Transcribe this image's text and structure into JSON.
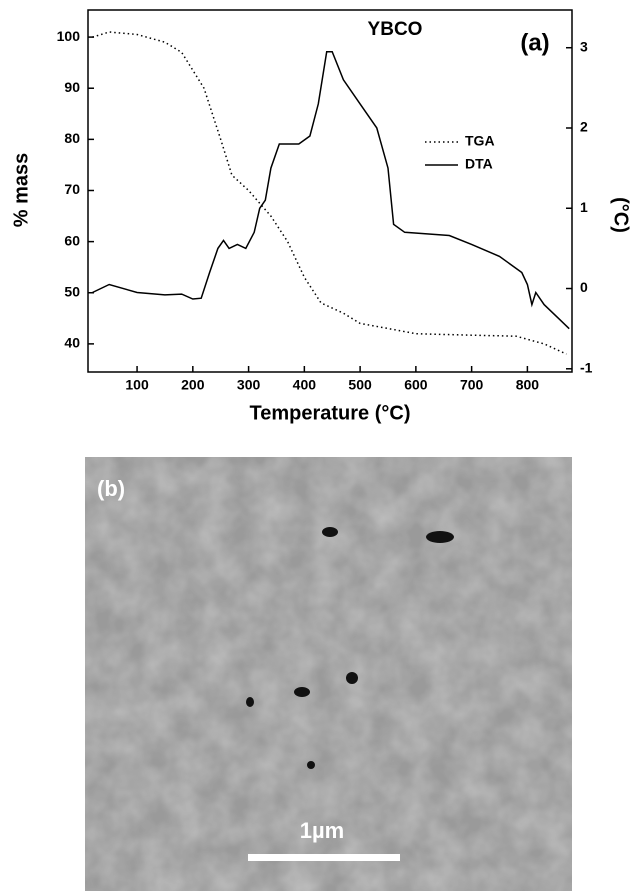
{
  "chart_data": {
    "type": "line",
    "title": "YBCO",
    "annotation": "(a)",
    "x_label": "Temperature (°C)",
    "y_label": "% mass",
    "y2_label": "(°C)",
    "xlim": [
      12,
      880
    ],
    "xticks": [
      100,
      200,
      300,
      400,
      500,
      600,
      700,
      800
    ],
    "ylim": [
      34.5,
      105.3
    ],
    "yticks": [
      40,
      50,
      60,
      70,
      80,
      90,
      100
    ],
    "y2lim": [
      -1.04,
      3.47
    ],
    "y2ticks": [
      -1,
      0,
      1,
      2,
      3
    ],
    "series": [
      {
        "name": "TGA",
        "color": "#000000",
        "linestyle": "dotted",
        "x": [
          20,
          50,
          100,
          150,
          180,
          220,
          250,
          270,
          300,
          340,
          370,
          400,
          430,
          470,
          500,
          550,
          600,
          700,
          780,
          830,
          870
        ],
        "values": [
          100,
          101,
          100.5,
          99,
          97,
          90,
          80,
          73,
          70,
          65,
          60,
          53,
          48,
          46,
          44,
          43,
          42,
          41.7,
          41.5,
          40,
          38
        ]
      },
      {
        "name": "DTA",
        "color": "#000000",
        "linestyle": "solid",
        "axis": "y2",
        "x": [
          20,
          50,
          100,
          150,
          180,
          200,
          215,
          230,
          245,
          255,
          265,
          280,
          295,
          310,
          320,
          330,
          340,
          355,
          370,
          390,
          410,
          425,
          440,
          450,
          470,
          500,
          530,
          550,
          560,
          580,
          620,
          660,
          700,
          750,
          790,
          800,
          808,
          815,
          830,
          860,
          875
        ],
        "values": [
          -0.05,
          0.05,
          -0.05,
          -0.08,
          -0.07,
          -0.13,
          -0.12,
          0.2,
          0.5,
          0.6,
          0.5,
          0.55,
          0.5,
          0.7,
          1.0,
          1.1,
          1.5,
          1.8,
          1.8,
          1.8,
          1.9,
          2.3,
          2.95,
          2.95,
          2.6,
          2.3,
          2.0,
          1.5,
          0.8,
          0.7,
          0.68,
          0.66,
          0.55,
          0.4,
          0.2,
          0.05,
          -0.2,
          -0.05,
          -0.2,
          -0.4,
          -0.5
        ]
      }
    ]
  },
  "image": {
    "label": "(b)",
    "scale_bar": "1µm"
  }
}
